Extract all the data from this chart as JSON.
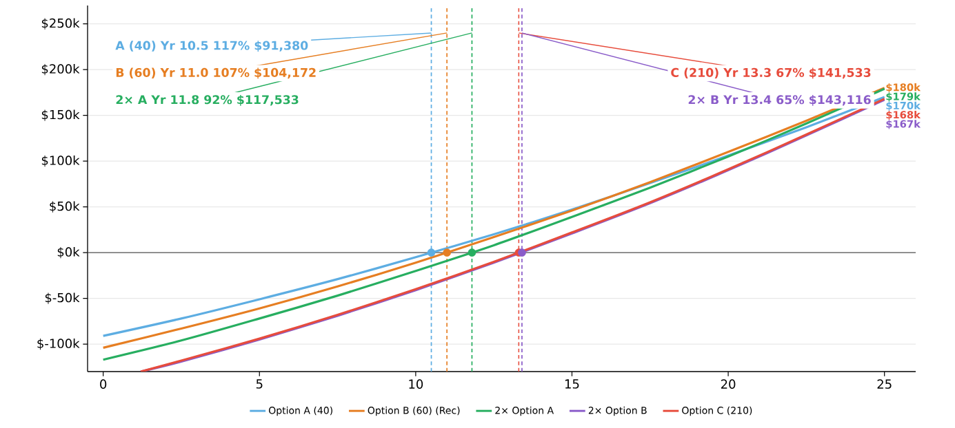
{
  "chart_data": {
    "type": "line",
    "xlim": [
      -0.5,
      26
    ],
    "xticks": [
      0,
      5,
      10,
      15,
      20,
      25
    ],
    "ylim": [
      -130000,
      270000
    ],
    "yticks": [
      {
        "value": -100000,
        "label": "$-100k"
      },
      {
        "value": -50000,
        "label": "$-50k"
      },
      {
        "value": 0,
        "label": "$0k"
      },
      {
        "value": 50000,
        "label": "$50k"
      },
      {
        "value": 100000,
        "label": "$100k"
      },
      {
        "value": 150000,
        "label": "$150k"
      },
      {
        "value": 200000,
        "label": "$200k"
      },
      {
        "value": 250000,
        "label": "$250k"
      }
    ],
    "grid": "y",
    "legend": "bottom",
    "x": [
      0,
      2.5,
      5,
      7.5,
      10,
      12.5,
      15,
      17.5,
      20,
      22.5,
      25
    ],
    "series": [
      {
        "name": "Option A (40)",
        "color": "#5dade2",
        "values": [
          -91000,
          -72000,
          -51000,
          -29000,
          -5000,
          20000,
          47000,
          76000,
          106000,
          137000,
          170000
        ],
        "value_labels": [
          null,
          null,
          null,
          null,
          null,
          null,
          null,
          null,
          null,
          null,
          "$170k"
        ]
      },
      {
        "name": "Option B (60) (Rec)",
        "color": "#e67e22",
        "values": [
          -104000,
          -83000,
          -61000,
          -37000,
          -11000,
          17000,
          46000,
          77000,
          110000,
          144000,
          180000
        ],
        "value_labels": [
          null,
          null,
          null,
          null,
          null,
          null,
          null,
          null,
          null,
          null,
          "$180k"
        ]
      },
      {
        "name": "2× Option A",
        "color": "#27ae60",
        "values": [
          -117000,
          -96000,
          -72000,
          -47000,
          -20000,
          8000,
          39000,
          71000,
          105000,
          141000,
          179000
        ],
        "value_labels": [
          null,
          null,
          null,
          null,
          null,
          null,
          null,
          null,
          null,
          null,
          "$179k"
        ]
      },
      {
        "name": "2× Option B",
        "color": "#8a5cc9",
        "x": [
          1.2,
          2.5,
          5,
          7.5,
          10,
          12.5,
          15,
          17.5,
          20,
          22.5,
          25
        ],
        "values": [
          -130000,
          -119000,
          -95000,
          -69000,
          -41000,
          -11000,
          21000,
          54000,
          90000,
          128000,
          167000
        ],
        "value_labels": [
          null,
          null,
          null,
          null,
          null,
          null,
          null,
          null,
          null,
          null,
          "$167k"
        ]
      },
      {
        "name": "Option C (210)",
        "color": "#e74c3c",
        "x": [
          1.2,
          2.5,
          5,
          7.5,
          10,
          12.5,
          15,
          17.5,
          20,
          22.5,
          25
        ],
        "values": [
          -130000,
          -118000,
          -94000,
          -68000,
          -40000,
          -10000,
          22000,
          55000,
          91000,
          129000,
          168000
        ],
        "value_labels": [
          null,
          null,
          null,
          null,
          null,
          null,
          null,
          null,
          null,
          null,
          "$168k"
        ]
      },
      {
        "type": "scatter",
        "marker": "circle",
        "x": [
          10.5,
          11.0,
          11.8,
          13.3,
          13.4
        ],
        "values": [
          0,
          0,
          0,
          0,
          0
        ],
        "colors": [
          "#5dade2",
          "#e67e22",
          "#27ae60",
          "#e74c3c",
          "#8a5cc9"
        ]
      }
    ],
    "ref_lines": [
      {
        "axis": "y",
        "value": 0,
        "color": "#555555",
        "line_style": "solid"
      },
      {
        "axis": "x",
        "value": 10.5,
        "color": "#5dade2",
        "line_style": "dashed"
      },
      {
        "axis": "x",
        "value": 11.0,
        "color": "#e67e22",
        "line_style": "dashed"
      },
      {
        "axis": "x",
        "value": 11.8,
        "color": "#27ae60",
        "line_style": "dashed"
      },
      {
        "axis": "x",
        "value": 13.3,
        "color": "#e74c3c",
        "line_style": "dashed"
      },
      {
        "axis": "x",
        "value": 13.4,
        "color": "#8a5cc9",
        "line_style": "dashed"
      }
    ],
    "annotations": [
      {
        "text": "A (40)   Yr 10.5   117%   $91,380",
        "x": 10.5,
        "y": 240000
      },
      {
        "text": "B (60)   Yr 11.0   107%   $104,172",
        "x": 11.0,
        "y": 240000
      },
      {
        "text": "2× A   Yr 11.8   92%   $117,533",
        "x": 11.8,
        "y": 240000
      },
      {
        "text": "C (210)   Yr 13.3   67%   $141,533",
        "x": 13.3,
        "y": 240000
      },
      {
        "text": "2× B   Yr 13.4   65%   $143,116",
        "x": 13.4,
        "y": 240000
      }
    ]
  }
}
